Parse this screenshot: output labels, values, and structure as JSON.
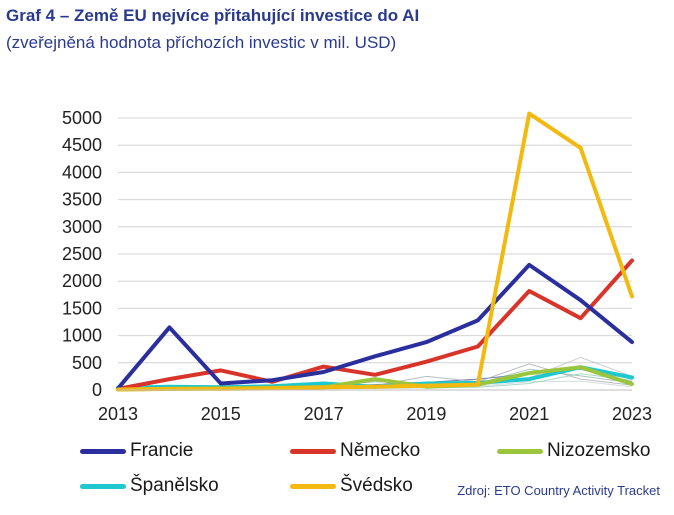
{
  "header": {
    "title": "Graf 4 – Země EU nejvíce přitahující investice do AI",
    "subtitle": "(zveřejněná hodnota příchozích investic v mil. USD)"
  },
  "source": "Zdroj: ETO Country Activity Tracket",
  "chart_data": {
    "type": "line",
    "title": "Graf 4 – Země EU nejvíce přitahující investice do AI",
    "subtitle": "(zveřejněná hodnota příchozích investic v mil. USD)",
    "x": [
      2013,
      2014,
      2015,
      2016,
      2017,
      2018,
      2019,
      2020,
      2021,
      2022,
      2023
    ],
    "xlim": [
      2013,
      2023
    ],
    "ylim": [
      0,
      5000
    ],
    "x_ticks": [
      "2013",
      "2015",
      "2017",
      "2019",
      "2021",
      "2023"
    ],
    "y_ticks": [
      "0",
      "500",
      "1000",
      "1500",
      "2000",
      "2500",
      "3000",
      "3500",
      "4000",
      "4500",
      "5000"
    ],
    "grid": "horizontal",
    "legend_position": "bottom",
    "series": [
      {
        "name": "Francie",
        "color": "#2b2f9e",
        "values": [
          30,
          1150,
          120,
          180,
          330,
          620,
          880,
          1280,
          2300,
          1650,
          880
        ]
      },
      {
        "name": "Německo",
        "color": "#d9342a",
        "values": [
          20,
          200,
          360,
          150,
          430,
          280,
          520,
          800,
          1820,
          1320,
          2380
        ]
      },
      {
        "name": "Nizozemsko",
        "color": "#9bc53d",
        "values": [
          10,
          20,
          30,
          40,
          50,
          200,
          60,
          100,
          310,
          420,
          110
        ]
      },
      {
        "name": "Španělsko",
        "color": "#1fc7cf",
        "values": [
          40,
          60,
          50,
          70,
          120,
          60,
          120,
          130,
          200,
          420,
          230
        ]
      },
      {
        "name": "Švédsko",
        "color": "#f4b90f",
        "values": [
          10,
          20,
          20,
          30,
          50,
          60,
          80,
          100,
          5080,
          4450,
          1720
        ]
      }
    ],
    "background_series": [
      {
        "color": "#3a4a8a",
        "values": [
          20,
          30,
          40,
          60,
          70,
          100,
          140,
          200,
          300,
          380,
          150
        ]
      },
      {
        "color": "#9aa3a8",
        "values": [
          10,
          30,
          20,
          50,
          60,
          80,
          250,
          150,
          480,
          200,
          90
        ]
      },
      {
        "color": "#b7bdc1",
        "values": [
          5,
          10,
          15,
          20,
          40,
          60,
          70,
          90,
          220,
          600,
          250
        ]
      },
      {
        "color": "#7fae9d",
        "values": [
          10,
          15,
          25,
          30,
          70,
          150,
          130,
          120,
          380,
          260,
          130
        ]
      },
      {
        "color": "#c9cdd1",
        "values": [
          5,
          10,
          15,
          25,
          30,
          40,
          50,
          70,
          150,
          160,
          60
        ]
      },
      {
        "color": "#86c9a9",
        "values": [
          5,
          10,
          10,
          20,
          25,
          30,
          40,
          50,
          120,
          300,
          180
        ]
      }
    ]
  }
}
